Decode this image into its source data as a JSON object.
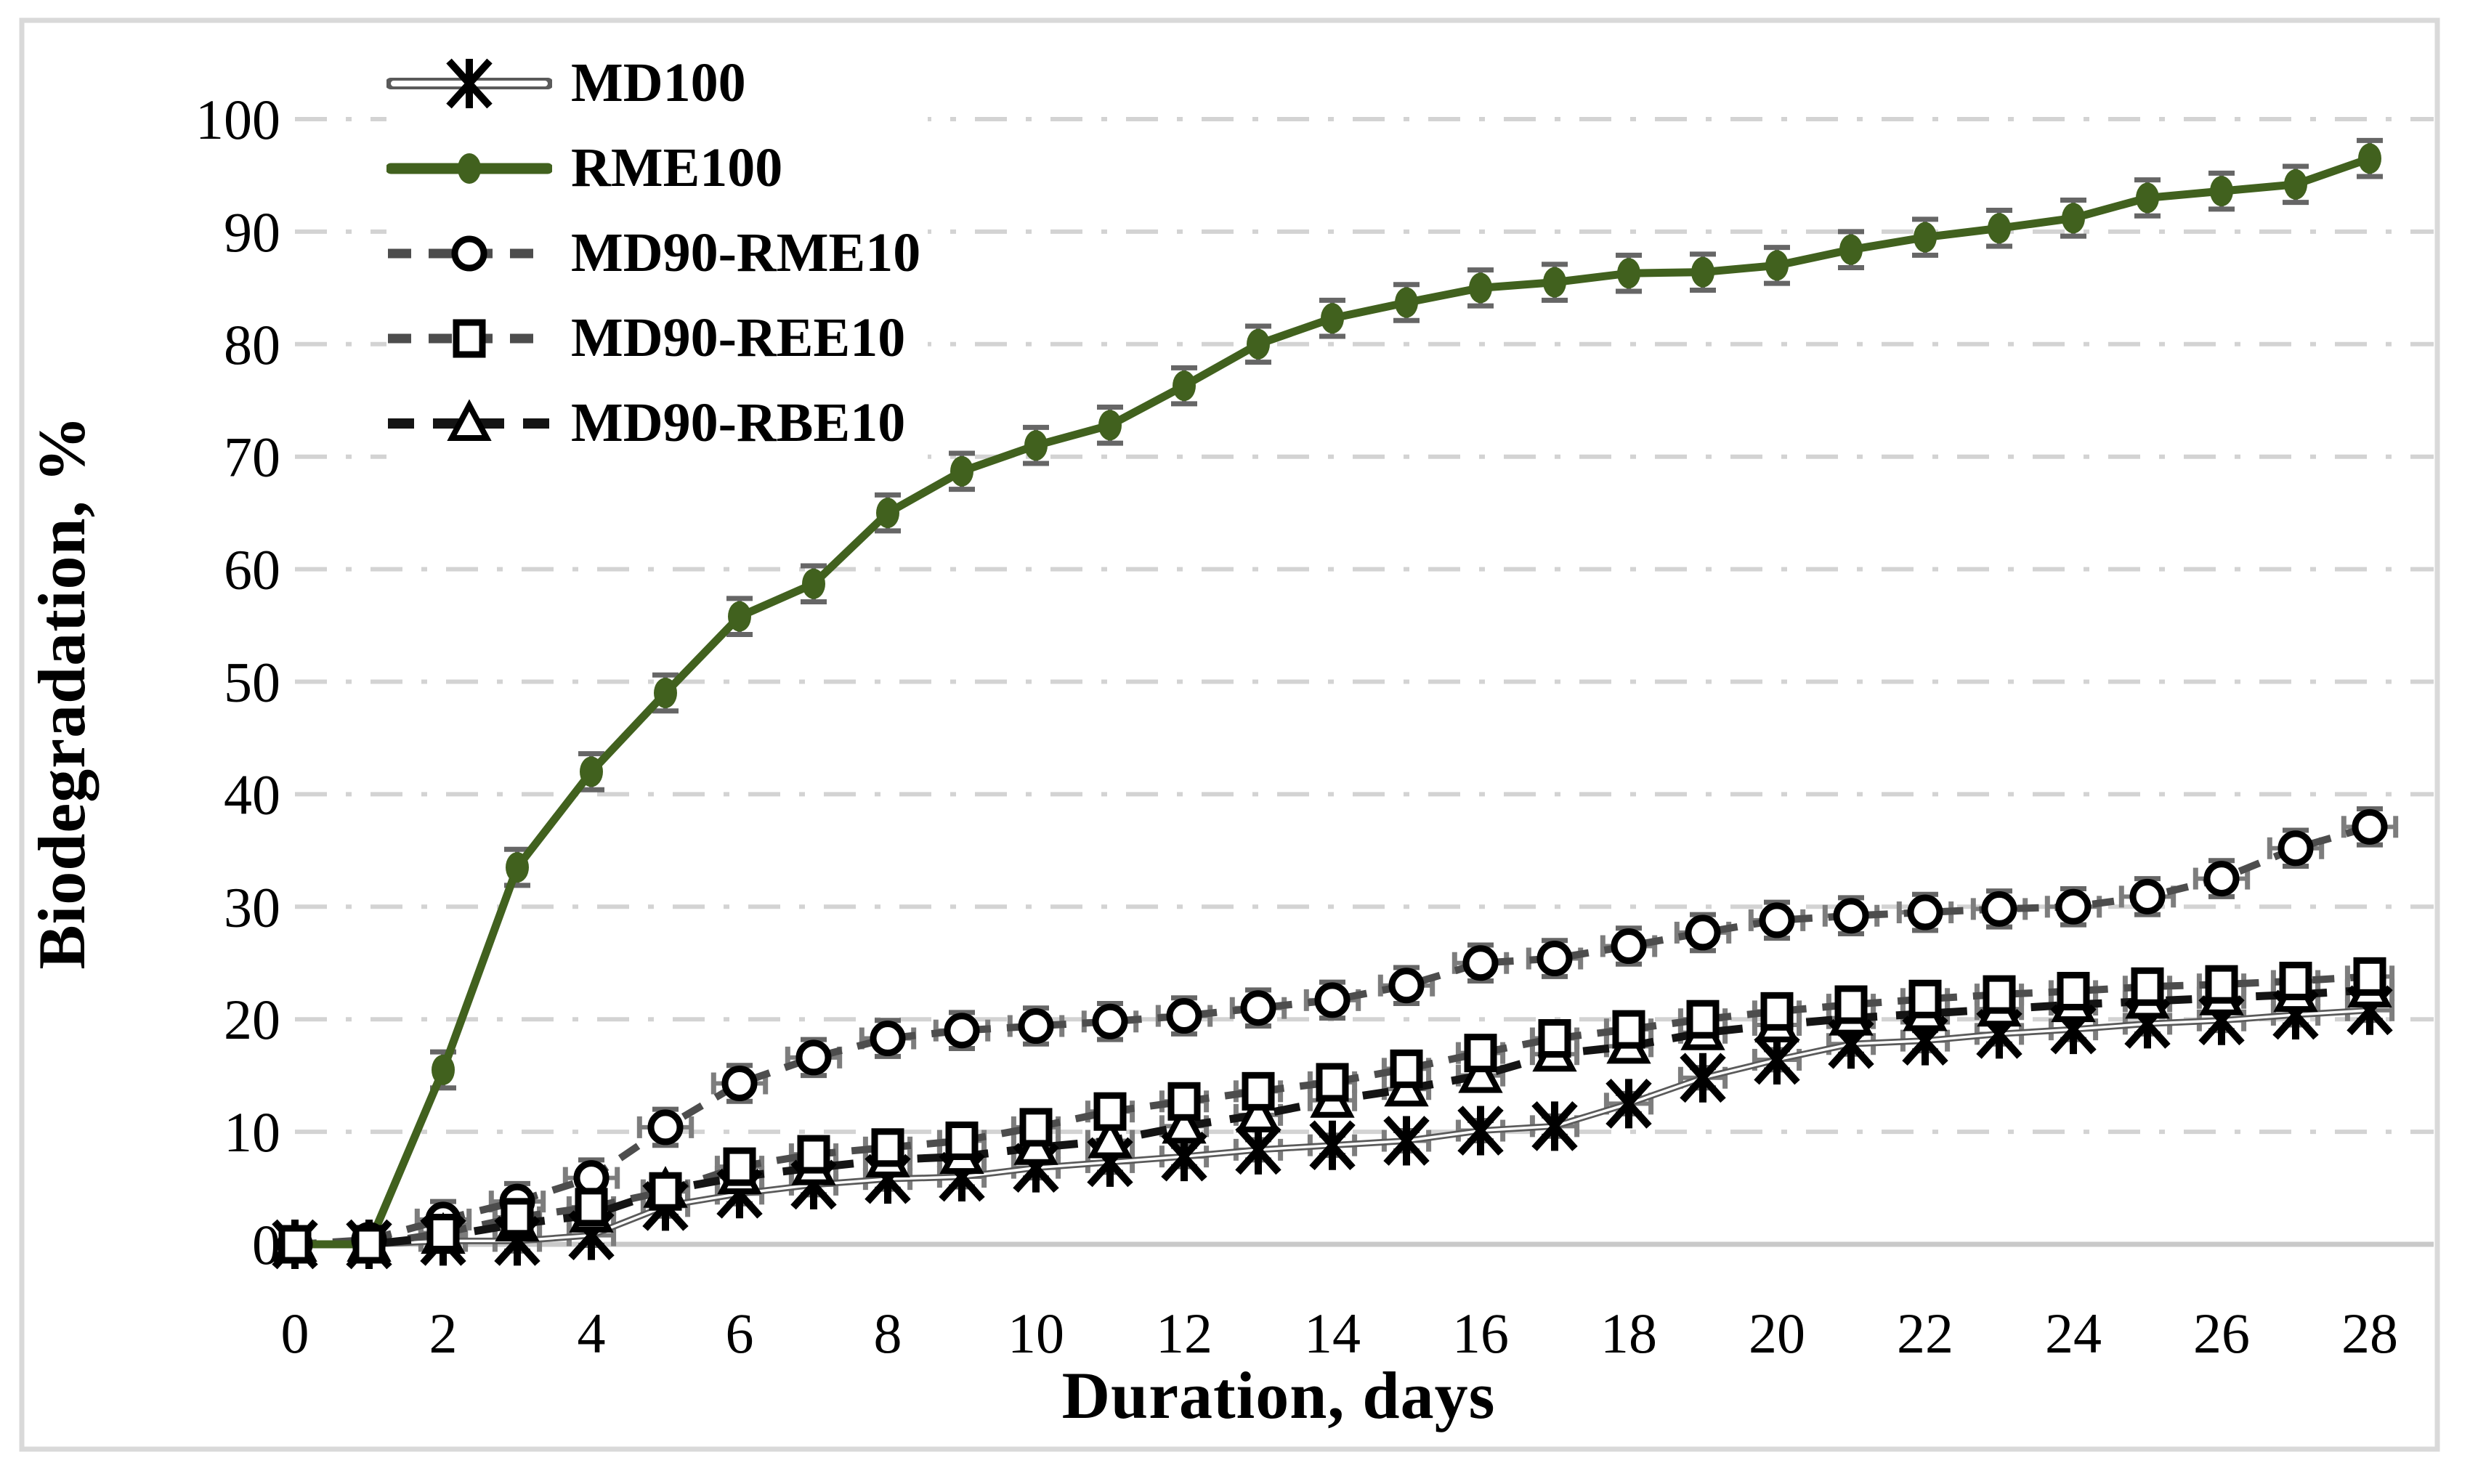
{
  "chart_data": {
    "type": "line",
    "title": "",
    "xlabel": "Duration, days",
    "ylabel": "Biodegradation, %",
    "xlim": [
      0,
      28
    ],
    "ylim": [
      0,
      100
    ],
    "x_ticks": [
      0,
      2,
      4,
      6,
      8,
      10,
      12,
      14,
      16,
      18,
      20,
      22,
      24,
      26,
      28
    ],
    "y_ticks": [
      0,
      10,
      20,
      30,
      40,
      50,
      60,
      70,
      80,
      90,
      100
    ],
    "grid": "horizontal dash-dot light gray",
    "legend_position": "top-left inside plot",
    "x": [
      0,
      1,
      2,
      3,
      4,
      5,
      6,
      7,
      8,
      9,
      10,
      11,
      12,
      13,
      14,
      15,
      16,
      17,
      18,
      19,
      20,
      21,
      22,
      23,
      24,
      25,
      26,
      27,
      28
    ],
    "series": [
      {
        "name": "MD100",
        "color": "#5A5A5A",
        "line": "double-solid",
        "marker": "asterisk",
        "marker_color": "#000000",
        "y_err": 0.9,
        "x_err": 0.3,
        "values": [
          0,
          0,
          0.3,
          0.3,
          0.8,
          3.4,
          4.5,
          5.3,
          5.8,
          6.0,
          6.8,
          7.3,
          7.8,
          8.4,
          8.8,
          9.2,
          10.1,
          10.5,
          12.5,
          14.8,
          16.4,
          17.8,
          18.1,
          18.7,
          19.1,
          19.6,
          19.9,
          20.4,
          20.8
        ]
      },
      {
        "name": "RME100",
        "color": "#41611E",
        "line": "solid",
        "marker": "filled-circle",
        "marker_color": "#41611E",
        "y_err": 1.6,
        "x_err": 0,
        "values": [
          0,
          0,
          15.5,
          33.5,
          42,
          49,
          55.8,
          58.7,
          65,
          68.7,
          71,
          72.8,
          76.3,
          80,
          82.3,
          83.7,
          85,
          85.5,
          86.3,
          86.4,
          87,
          88.4,
          89.5,
          90.3,
          91.2,
          93,
          93.6,
          94.2,
          96.5
        ]
      },
      {
        "name": "MD90-RME10",
        "color": "#4D4D4D",
        "line": "dashed",
        "marker": "open-circle",
        "marker_color": "#000000",
        "y_err": 1.6,
        "x_err": 0.35,
        "values": [
          0,
          0.4,
          2.2,
          3.8,
          5.9,
          10.4,
          14.3,
          16.6,
          18.3,
          19.0,
          19.4,
          19.8,
          20.3,
          21.0,
          21.7,
          23.0,
          25.0,
          25.4,
          26.5,
          27.7,
          28.8,
          29.2,
          29.5,
          29.8,
          30.0,
          30.9,
          32.5,
          35.2,
          37.1
        ]
      },
      {
        "name": "MD90-REE10",
        "color": "#4D4D4D",
        "line": "dashed",
        "marker": "open-square",
        "marker_color": "#000000",
        "y_err": 1.3,
        "x_err": 0.3,
        "values": [
          0,
          0,
          1.0,
          2.4,
          3.3,
          4.7,
          6.9,
          8.0,
          8.6,
          9.2,
          10.4,
          11.8,
          12.7,
          13.6,
          14.4,
          15.6,
          17.0,
          18.3,
          19.1,
          20.0,
          20.7,
          21.3,
          21.8,
          22.2,
          22.5,
          22.9,
          23.1,
          23.4,
          23.8
        ]
      },
      {
        "name": "MD90-RBE10",
        "color": "#141414",
        "line": "dashed-long",
        "marker": "open-triangle",
        "marker_color": "#000000",
        "y_err": 1.3,
        "x_err": 0.3,
        "values": [
          0,
          0,
          0.7,
          1.8,
          2.6,
          4.8,
          6.0,
          6.8,
          7.5,
          7.8,
          8.6,
          9.2,
          10.5,
          11.5,
          12.8,
          13.8,
          15.0,
          16.9,
          17.6,
          18.8,
          19.5,
          20.1,
          20.5,
          20.9,
          21.3,
          21.6,
          21.9,
          22.2,
          22.6
        ]
      }
    ],
    "colors": {
      "grid": "#D3D3D3",
      "axis_line": "#C9C9C9",
      "error_bar": "#666666",
      "error_bar_x": "#7D7D7D",
      "frame": "#D9D9D9",
      "text": "#000000",
      "background": "#FFFFFF"
    }
  }
}
